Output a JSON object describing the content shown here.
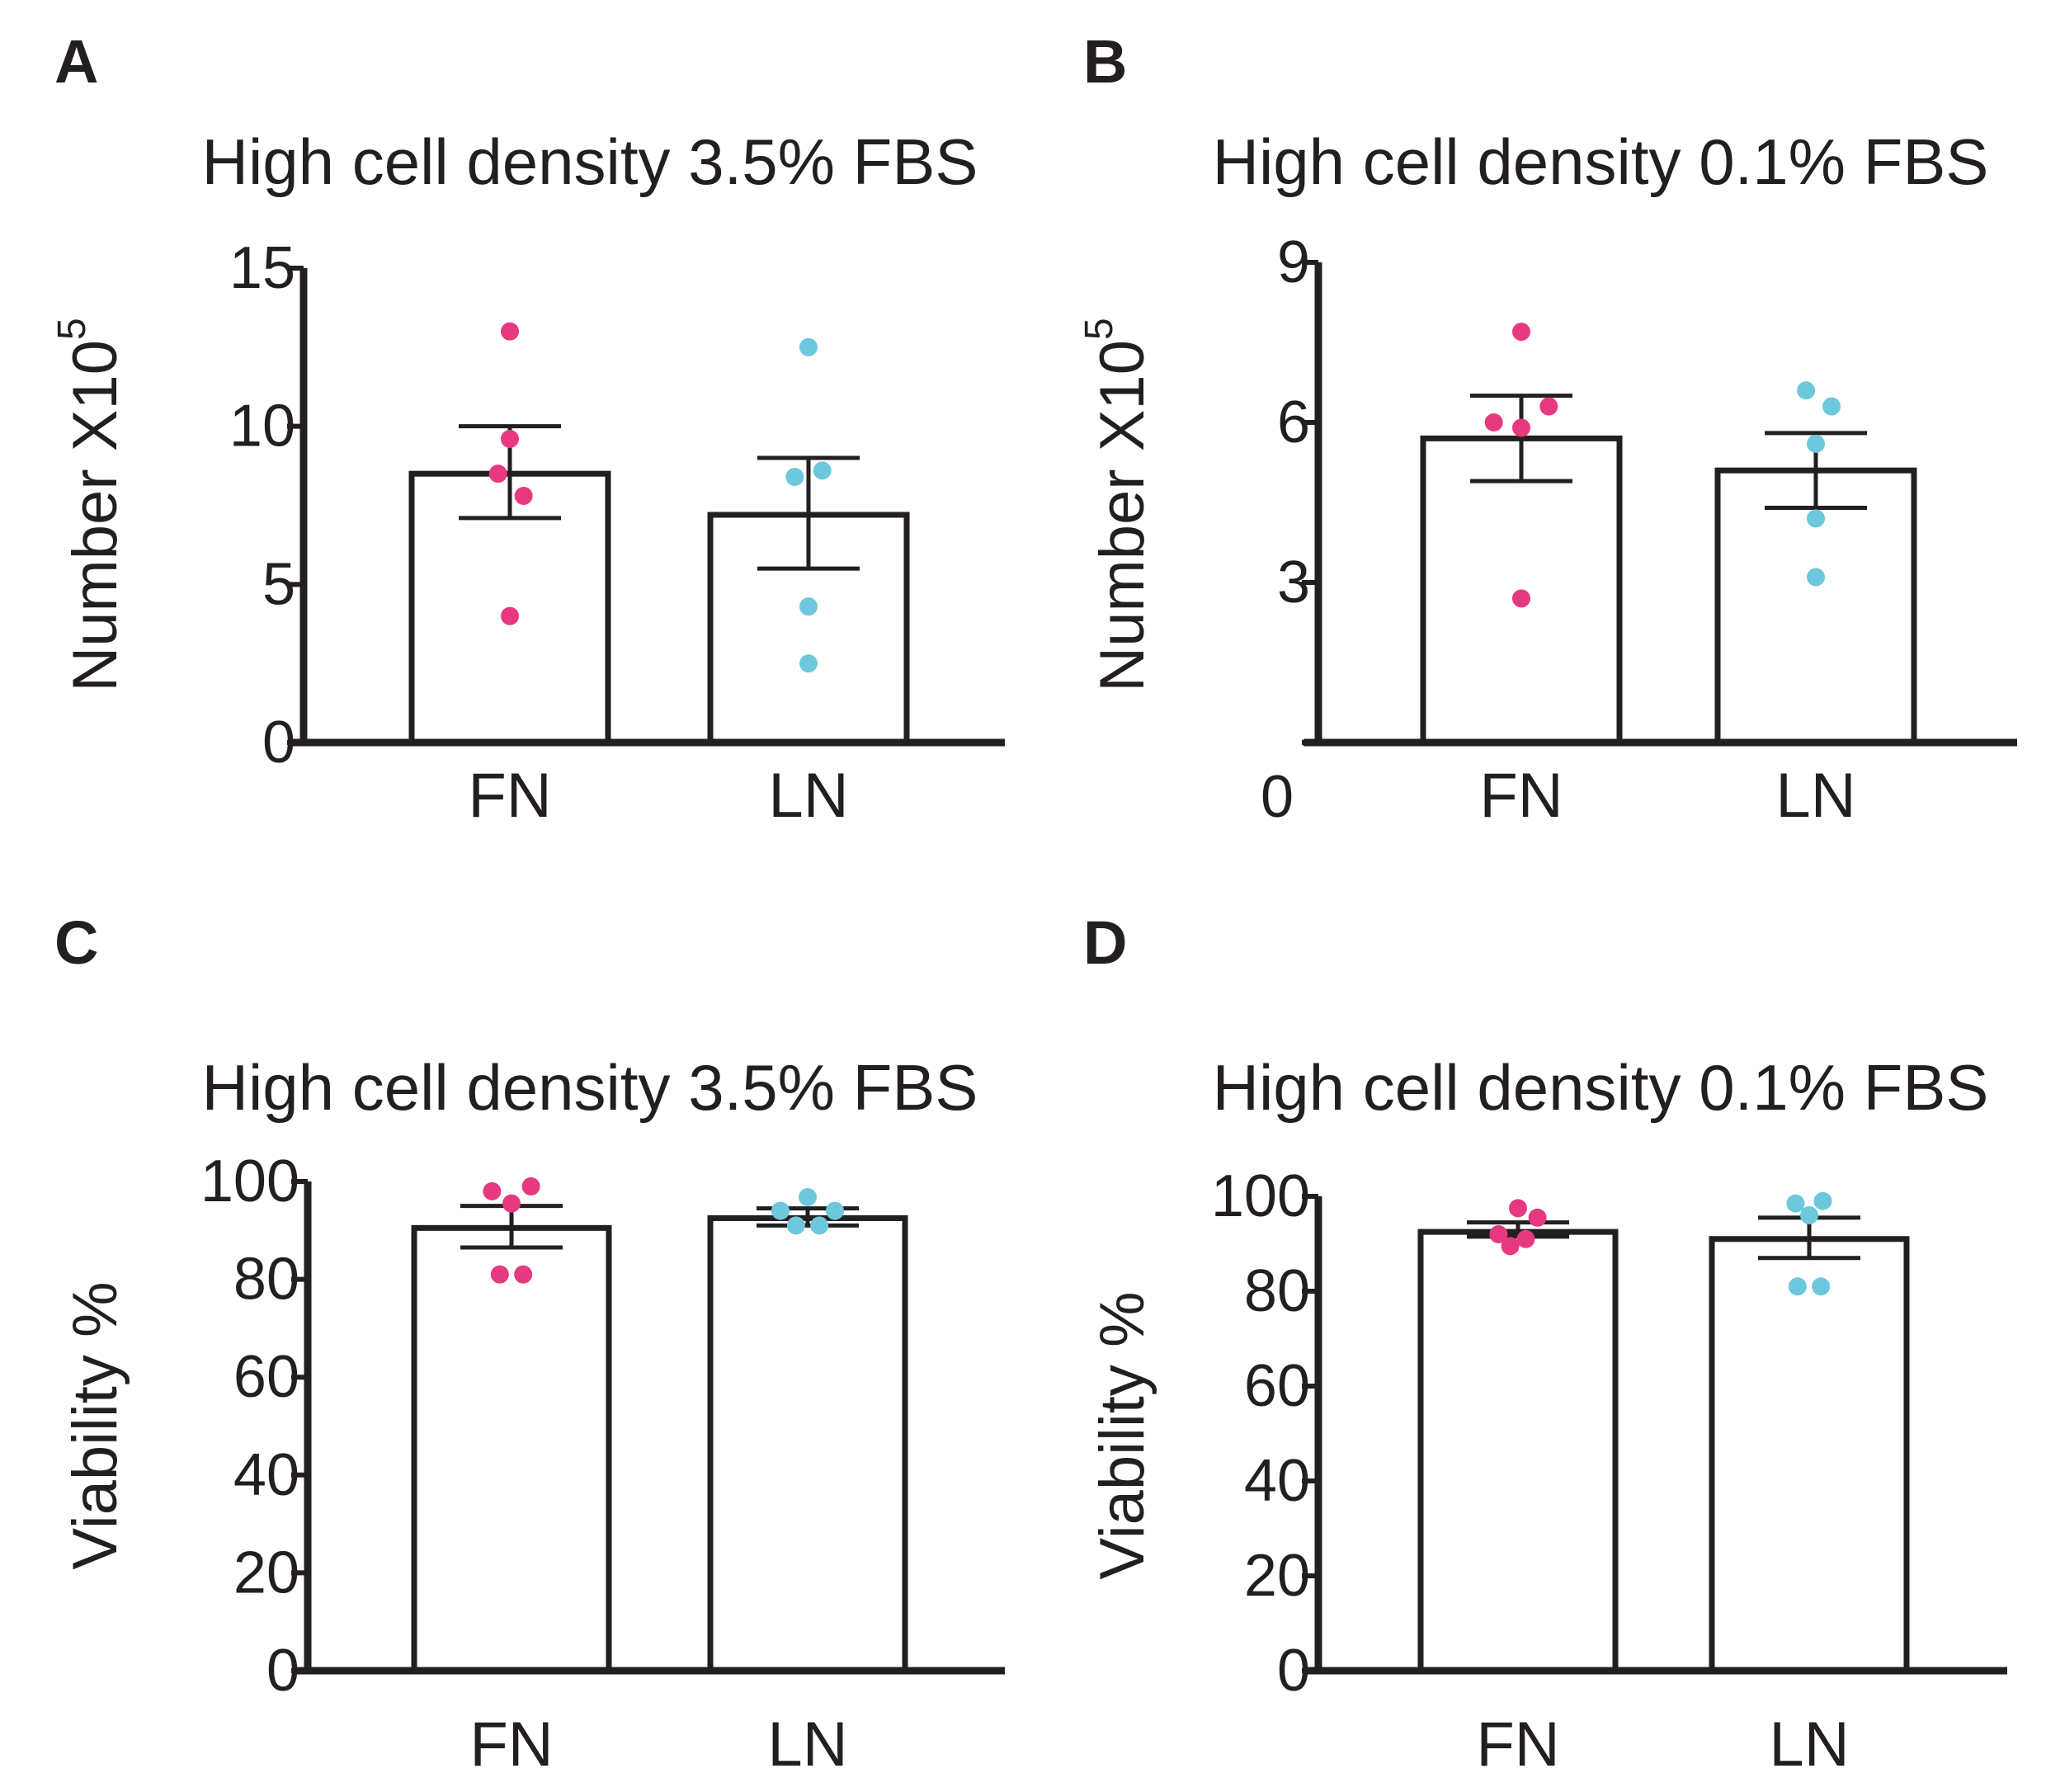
{
  "colors": {
    "FN": "#e6397f",
    "LN": "#6dc8dd",
    "ink": "#231f20"
  },
  "chart_data": [
    {
      "panel": "A",
      "type": "bar",
      "title": "High cell density 3.5% FBS",
      "ylabel": "Number X10",
      "ylabel_sup": "5",
      "xlabel": "",
      "ylim": [
        0,
        15
      ],
      "yticks": [
        0,
        5,
        10,
        15
      ],
      "zero_label_on_xaxis": false,
      "categories": [
        "FN",
        "LN"
      ],
      "series": [
        {
          "name": "FN",
          "mean": 8.5,
          "sem_low": 7.1,
          "sem_high": 10.0,
          "points": [
            13.0,
            9.6,
            8.5,
            7.8,
            4.0
          ],
          "point_x": [
            0.0,
            0.0,
            -0.12,
            0.14,
            0.0
          ]
        },
        {
          "name": "LN",
          "mean": 7.2,
          "sem_low": 5.5,
          "sem_high": 9.0,
          "points": [
            12.5,
            8.6,
            8.4,
            4.3,
            2.5
          ],
          "point_x": [
            0.0,
            0.14,
            -0.14,
            0.0,
            0.0
          ]
        }
      ]
    },
    {
      "panel": "B",
      "type": "bar",
      "title": "High cell density 0.1% FBS",
      "ylabel": "Number X10",
      "ylabel_sup": "5",
      "xlabel": "",
      "ylim": [
        0,
        9
      ],
      "yticks": [
        0,
        3,
        6,
        9
      ],
      "zero_label_on_xaxis": true,
      "categories": [
        "FN",
        "LN"
      ],
      "series": [
        {
          "name": "FN",
          "mean": 5.7,
          "sem_low": 4.9,
          "sem_high": 6.5,
          "points": [
            7.7,
            6.3,
            6.0,
            5.9,
            2.7
          ],
          "point_x": [
            0.0,
            0.28,
            -0.28,
            0.0,
            0.0
          ]
        },
        {
          "name": "LN",
          "mean": 5.1,
          "sem_low": 4.4,
          "sem_high": 5.8,
          "points": [
            6.6,
            6.3,
            5.6,
            4.2,
            3.1
          ],
          "point_x": [
            -0.1,
            0.16,
            0.0,
            0.0,
            0.0
          ]
        }
      ]
    },
    {
      "panel": "C",
      "type": "bar",
      "title": "High cell density 3.5% FBS",
      "ylabel": "Viability %",
      "ylabel_sup": "",
      "xlabel": "",
      "ylim": [
        0,
        100
      ],
      "yticks": [
        0,
        20,
        40,
        60,
        80,
        100
      ],
      "zero_label_on_xaxis": false,
      "categories": [
        "FN",
        "LN"
      ],
      "series": [
        {
          "name": "FN",
          "mean": 90.5,
          "sem_low": 86.5,
          "sem_high": 95.0,
          "points": [
            99.0,
            98.0,
            95.5,
            81.0,
            81.0
          ],
          "point_x": [
            0.2,
            -0.2,
            0.0,
            -0.12,
            0.12
          ]
        },
        {
          "name": "LN",
          "mean": 92.5,
          "sem_low": 91.0,
          "sem_high": 94.5,
          "points": [
            96.8,
            94.0,
            94.0,
            91.0,
            91.0
          ],
          "point_x": [
            0.0,
            -0.28,
            0.28,
            -0.12,
            0.12
          ]
        }
      ]
    },
    {
      "panel": "D",
      "type": "bar",
      "title": "High cell density 0.1% FBS",
      "ylabel": "Viability %",
      "ylabel_sup": "",
      "xlabel": "",
      "ylim": [
        0,
        100
      ],
      "yticks": [
        0,
        20,
        40,
        60,
        80,
        100
      ],
      "zero_label_on_xaxis": false,
      "categories": [
        "FN",
        "LN"
      ],
      "series": [
        {
          "name": "FN",
          "mean": 92.5,
          "sem_low": 91.5,
          "sem_high": 94.5,
          "points": [
            97.5,
            95.5,
            92.0,
            91.0,
            89.5
          ],
          "point_x": [
            0.0,
            0.2,
            -0.2,
            0.08,
            -0.08
          ]
        },
        {
          "name": "LN",
          "mean": 91.0,
          "sem_low": 87.0,
          "sem_high": 95.5,
          "points": [
            99.0,
            98.5,
            96.0,
            81.0,
            81.0
          ],
          "point_x": [
            0.14,
            -0.14,
            0.0,
            -0.12,
            0.12
          ]
        }
      ]
    }
  ]
}
